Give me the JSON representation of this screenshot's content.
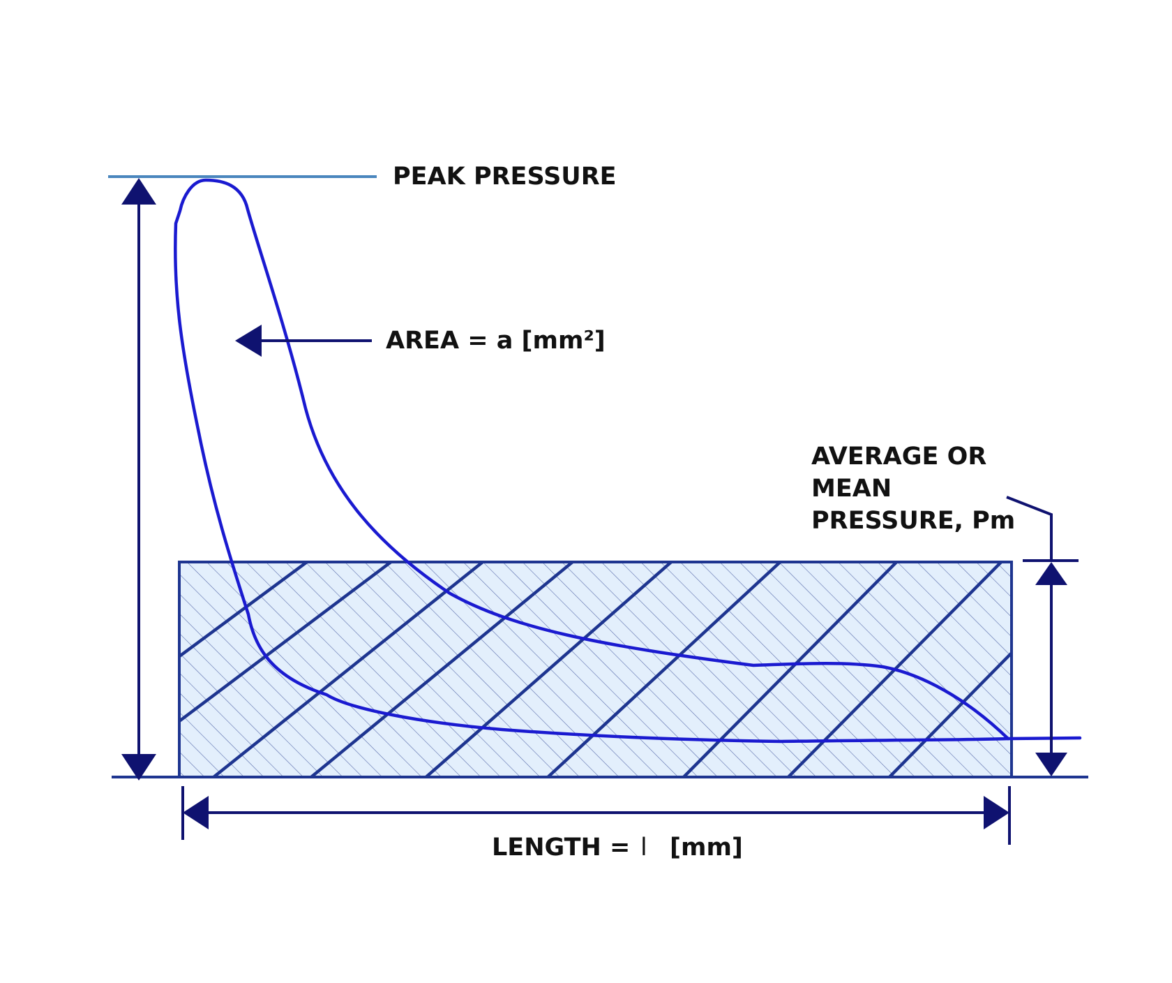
{
  "labels": {
    "peak_pressure": "PEAK PRESSURE",
    "area": "AREA = a [mm²]",
    "mean_line1": "AVERAGE OR",
    "mean_line2": "MEAN",
    "mean_line3": "PRESSURE, Pm",
    "length": "LENGTH  =",
    "length_symbol": "l",
    "length_unit": "[mm]"
  },
  "colors": {
    "dimension": "#0f1270",
    "curve": "#1a1ad0",
    "peak_line": "#4a86bd",
    "rect_stroke": "#1e3590",
    "rect_fill": "#e3effc",
    "hatch": "#2a3f8f"
  }
}
